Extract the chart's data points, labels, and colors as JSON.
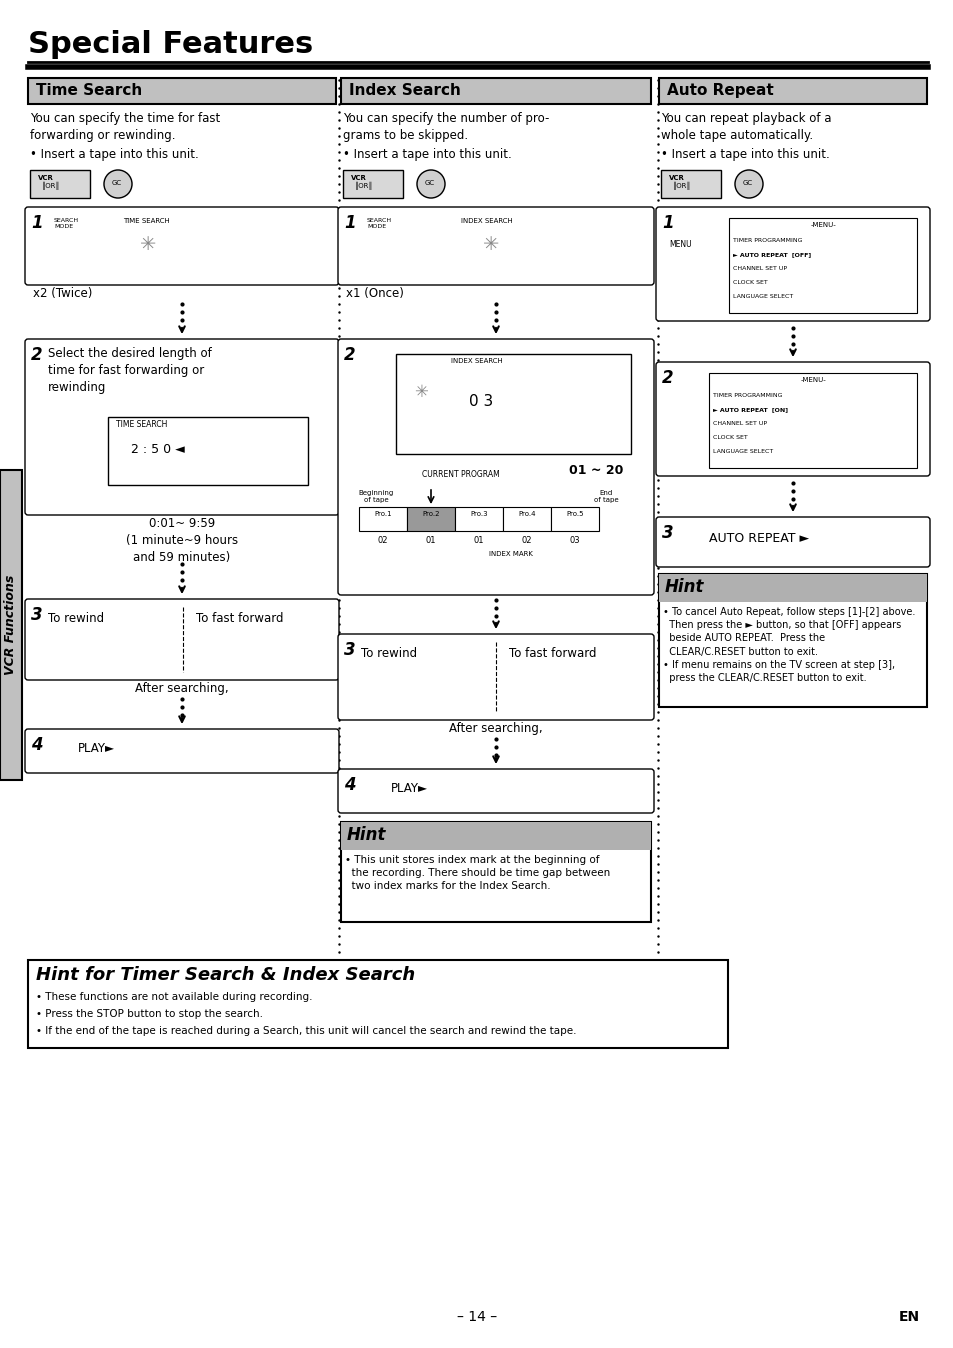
{
  "page_bg": "#ffffff",
  "title": "Special Features",
  "header_bg": "#c0c0c0",
  "hint_bg_top": "#b0b0b0",
  "hint_bg_bottom": "#d8d8d8",
  "section_headers": [
    "Time Search",
    "Index Search",
    "Auto Repeat"
  ],
  "footer_text": "– 14 –",
  "footer_en": "EN",
  "vcr_functions_text": "VCR Functions",
  "hint_bottom_title": "Hint for Timer Search & Index Search",
  "hint_bottom_bullets": [
    "• These functions are not available during recording.",
    "• Press the STOP button to stop the search.",
    "• If the end of the tape is reached during a Search, this unit will cancel the search and rewind the tape."
  ],
  "col2_hint_text": "• This unit stores index mark at the beginning of\n  the recording. There should be time gap between\n  two index marks for the Index Search.",
  "col3_hint_text": "• To cancel Auto Repeat, follow steps [1]-[2] above.\n  Then press the ► button, so that [OFF] appears\n  beside AUTO REPEAT.  Press the\n  CLEAR/C.RESET button to exit.\n• If menu remains on the TV screen at step [3],\n  press the CLEAR/C.RESET button to exit."
}
